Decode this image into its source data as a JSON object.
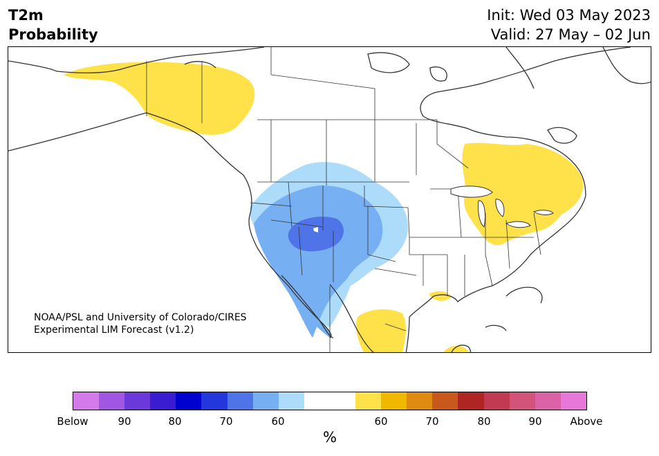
{
  "title": {
    "left_line1": "T2m",
    "left_line2": "Probability",
    "init": "Init: Wed 03 May 2023",
    "valid": "Valid: 27 May – 02 Jun"
  },
  "credit": {
    "line1": "NOAA/PSL and University of Colorado/CIRES",
    "line2": "Experimental LIM Forecast (v1.2)"
  },
  "colorbar": {
    "units": "%",
    "colors": [
      "#d57aea",
      "#a157e4",
      "#6b39d9",
      "#3a1dd0",
      "#0000cf",
      "#2238dd",
      "#4f74e8",
      "#77b0f2",
      "#acdcfa",
      "#ffffff",
      "#ffffff",
      "#ffe24a",
      "#f1b800",
      "#df8a10",
      "#c9581c",
      "#ae2524",
      "#c23a52",
      "#d2547a",
      "#dc62a8",
      "#e877da"
    ],
    "labels": [
      "Below",
      "90",
      "80",
      "70",
      "60",
      "60",
      "70",
      "80",
      "90",
      "Above"
    ]
  },
  "map": {
    "region": "North America",
    "categories": {
      "below_60": "#acdcfa",
      "below_70": "#77b0f2",
      "below_80": "#4f74e8",
      "above_60": "#ffe24a"
    }
  }
}
